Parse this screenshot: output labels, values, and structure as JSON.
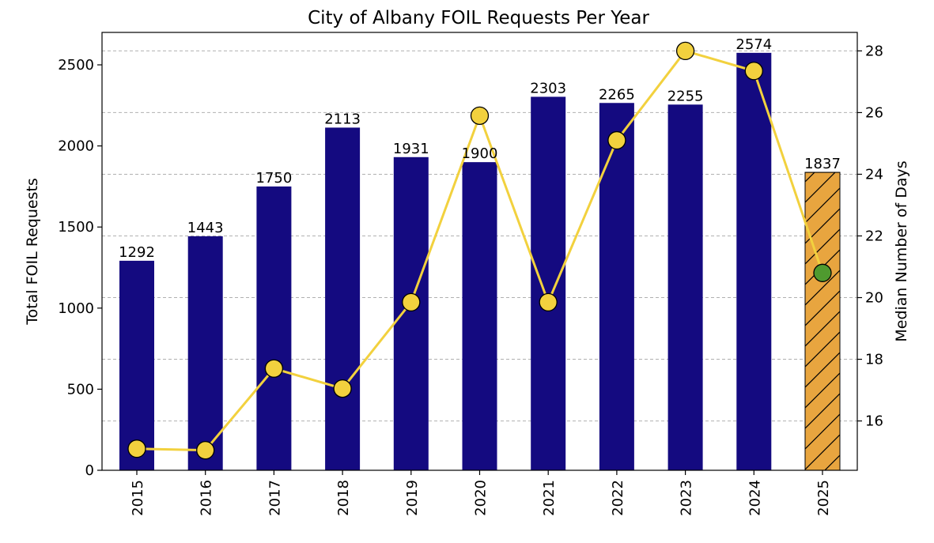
{
  "chart_data": {
    "type": "bar",
    "title": "City of Albany FOIL Requests Per Year",
    "xlabel": "",
    "ylabel": "Total FOIL Requests",
    "y2label": "Median Number of Days",
    "categories": [
      "2015",
      "2016",
      "2017",
      "2018",
      "2019",
      "2020",
      "2021",
      "2022",
      "2023",
      "2024",
      "2025"
    ],
    "series": [
      {
        "kind": "bar",
        "values": [
          1292,
          1443,
          1750,
          2113,
          1931,
          1900,
          2303,
          2265,
          2255,
          2574,
          1837
        ],
        "color": "#140a80",
        "highlight_index": 10,
        "highlight_color": "#e8a53f",
        "highlight_hatch": "diagonal"
      },
      {
        "kind": "line",
        "axis": "right",
        "values": [
          15.1,
          15.05,
          17.7,
          17.05,
          19.85,
          25.9,
          19.85,
          25.1,
          28.0,
          27.35,
          20.8
        ],
        "color": "#f2d13e",
        "marker_color": "#f2d13e",
        "last_marker_color": "#4f9a2f"
      }
    ],
    "ylim": [
      0,
      2700
    ],
    "yticks": [
      0,
      500,
      1000,
      1500,
      2000,
      2500
    ],
    "y2lim": [
      14.4,
      28.6
    ],
    "y2ticks": [
      16,
      18,
      20,
      22,
      24,
      26,
      28
    ],
    "grid": "right-axis horizontal dashed",
    "legend": "none"
  }
}
